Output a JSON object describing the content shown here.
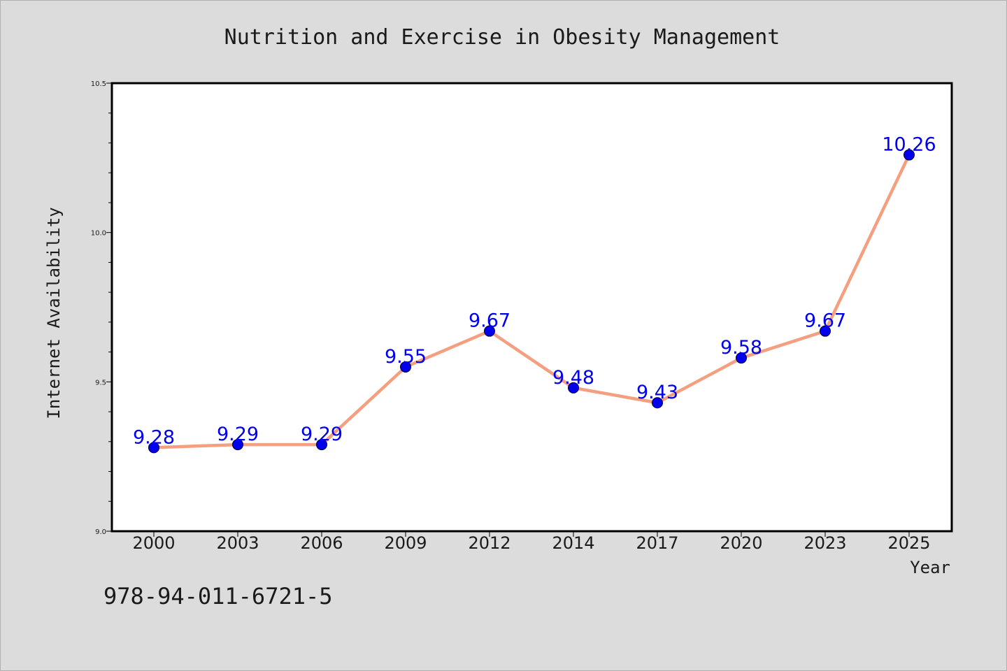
{
  "chart_data": {
    "type": "line",
    "title": "Nutrition and Exercise in Obesity Management",
    "xlabel": "Year",
    "ylabel": "Internet Availability",
    "categories": [
      "2000",
      "2003",
      "2006",
      "2009",
      "2012",
      "2014",
      "2017",
      "2020",
      "2023",
      "2025"
    ],
    "series": [
      {
        "values": [
          9.28,
          9.29,
          9.29,
          9.55,
          9.67,
          9.48,
          9.43,
          9.58,
          9.67,
          10.26
        ],
        "labels": [
          "9.28",
          "9.29",
          "9.29",
          "9.55",
          "9.67",
          "9.48",
          "9.43",
          "9.58",
          "9.67",
          "10.26"
        ],
        "line_color": "#f4a080",
        "marker_color": "#0000ee"
      }
    ],
    "ylim": [
      9.0,
      10.5
    ],
    "yticks": [
      "9.0",
      "9.5",
      "10.0",
      "10.5"
    ],
    "grid": false,
    "legend": "none"
  },
  "footer": {
    "isbn": "978-94-011-6721-5"
  },
  "colors": {
    "background": "#dcdcdc",
    "plot_background": "#ffffff",
    "line": "#f4a080",
    "marker": "#0000ee",
    "data_label": "#0000ee"
  }
}
